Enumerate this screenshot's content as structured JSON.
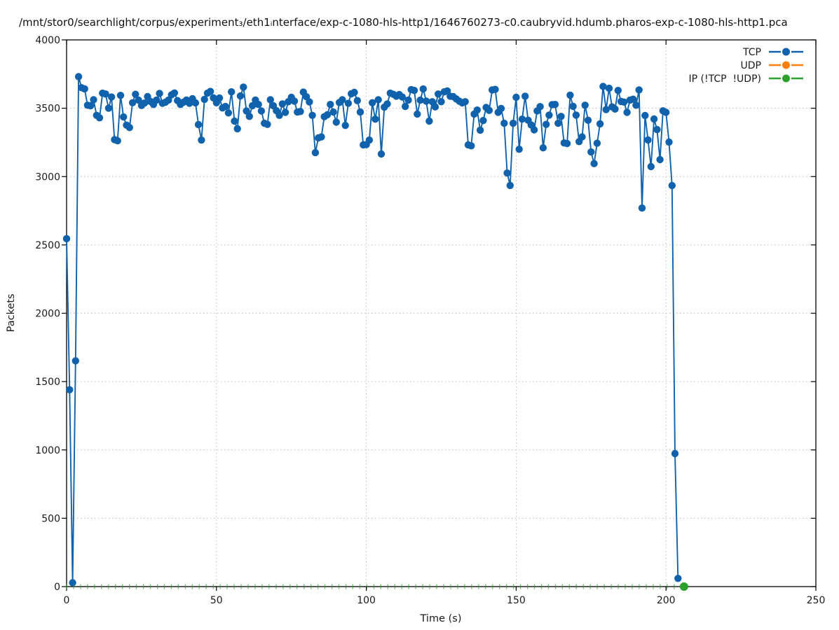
{
  "chart_data": {
    "type": "line",
    "title": "/mnt/stor0/searchlight/corpus/experiment₃/eth1ᵢnterface/exp-c-1080-hls-http1/1646760273-c0.caubryvid.hdumb.pharos-exp-c-1080-hls-http1.pca",
    "xlabel": "Time (s)",
    "ylabel": "Packets",
    "xlim": [
      0,
      250
    ],
    "ylim": [
      0,
      4000
    ],
    "xtick_step": 50,
    "ytick_step": 500,
    "grid": true,
    "legend_position": "top-right-inside",
    "series": [
      {
        "name": "TCP",
        "color": "#1062ac",
        "style": "linespoints",
        "marker": "filled-circle",
        "x_start": 0,
        "x_step": 1,
        "values": [
          2546,
          1440,
          28,
          1652,
          3731,
          3650,
          3642,
          3522,
          3518,
          3562,
          3448,
          3430,
          3610,
          3604,
          3500,
          3582,
          3270,
          3262,
          3594,
          3436,
          3376,
          3359,
          3540,
          3602,
          3559,
          3520,
          3538,
          3585,
          3550,
          3528,
          3560,
          3608,
          3536,
          3544,
          3560,
          3598,
          3612,
          3556,
          3528,
          3544,
          3560,
          3536,
          3570,
          3539,
          3381,
          3267,
          3565,
          3610,
          3623,
          3576,
          3540,
          3575,
          3502,
          3513,
          3466,
          3620,
          3406,
          3350,
          3590,
          3655,
          3480,
          3440,
          3518,
          3560,
          3528,
          3480,
          3390,
          3382,
          3562,
          3518,
          3482,
          3448,
          3532,
          3470,
          3548,
          3580,
          3552,
          3472,
          3476,
          3618,
          3584,
          3546,
          3448,
          3175,
          3283,
          3290,
          3438,
          3452,
          3528,
          3472,
          3398,
          3542,
          3562,
          3374,
          3536,
          3606,
          3616,
          3556,
          3472,
          3232,
          3234,
          3267,
          3540,
          3420,
          3562,
          3165,
          3508,
          3532,
          3610,
          3602,
          3588,
          3600,
          3582,
          3513,
          3560,
          3636,
          3630,
          3457,
          3559,
          3641,
          3552,
          3406,
          3548,
          3510,
          3604,
          3548,
          3620,
          3626,
          3588,
          3585,
          3568,
          3552,
          3539,
          3548,
          3232,
          3225,
          3457,
          3487,
          3340,
          3410,
          3506,
          3484,
          3634,
          3638,
          3470,
          3498,
          3390,
          3026,
          2935,
          3390,
          3580,
          3200,
          3420,
          3588,
          3412,
          3378,
          3342,
          3480,
          3512,
          3210,
          3382,
          3450,
          3526,
          3528,
          3390,
          3440,
          3246,
          3242,
          3596,
          3514,
          3450,
          3256,
          3290,
          3522,
          3412,
          3180,
          3095,
          3244,
          3386,
          3660,
          3490,
          3646,
          3510,
          3494,
          3630,
          3550,
          3545,
          3470,
          3560,
          3566,
          3522,
          3634,
          2770,
          3447,
          3268,
          3073,
          3421,
          3344,
          3124,
          3481,
          3470,
          3252,
          2934,
          973,
          60
        ]
      },
      {
        "name": "UDP",
        "color": "#ff7f0e",
        "style": "linespoints",
        "marker": "filled-circle",
        "values": []
      },
      {
        "name": "IP (!TCP  !UDP)",
        "color": "#2ca02c",
        "style": "linespoints",
        "marker": "filled-circle",
        "constant_y": 0,
        "x_range": [
          0,
          203.5
        ],
        "point_mark_spacing": 2.33,
        "end_marker_x": 206
      }
    ]
  }
}
